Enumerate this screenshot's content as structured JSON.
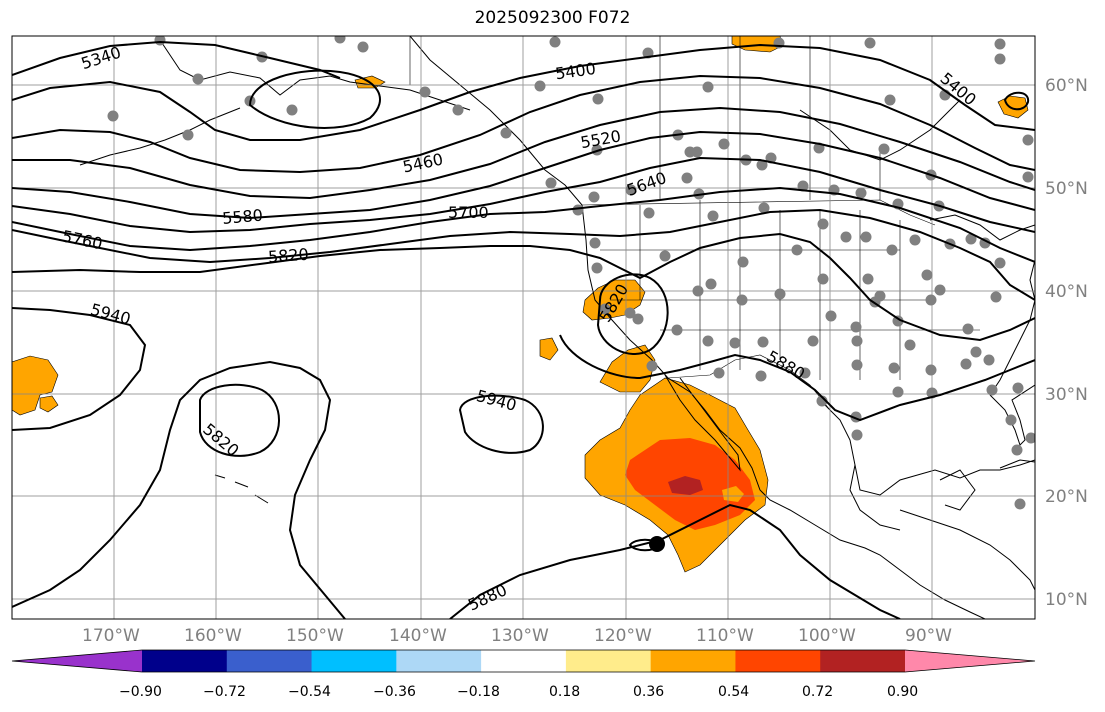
{
  "title": "2025092300 F072",
  "lat_labels": [
    "60°N",
    "50°N",
    "40°N",
    "30°N",
    "20°N",
    "10°N"
  ],
  "lon_labels": [
    "170°W",
    "160°W",
    "150°W",
    "140°W",
    "130°W",
    "120°W",
    "110°W",
    "100°W",
    "90°W"
  ],
  "contour_labels": [
    "5340",
    "5400",
    "5400",
    "5460",
    "5520",
    "5580",
    "5640",
    "5700",
    "5760",
    "5820",
    "5820",
    "5820",
    "5880",
    "5880",
    "5940",
    "5940"
  ],
  "colorbar": {
    "ticks": [
      "−0.90",
      "−0.72",
      "−0.54",
      "−0.36",
      "−0.18",
      "0.18",
      "0.36",
      "0.54",
      "0.72",
      "0.90"
    ],
    "colors": [
      "#9932cc",
      "#00008b",
      "#3a5fcd",
      "#00bfff",
      "#add8f6",
      "#ffffff",
      "#ffec8b",
      "#ffa500",
      "#ff4500",
      "#b22222",
      "#ff88aa"
    ]
  },
  "shading_colors": {
    "level1": "#ffa500",
    "level2": "#ff4500",
    "level3": "#b22222"
  },
  "station_color": "#808080"
}
